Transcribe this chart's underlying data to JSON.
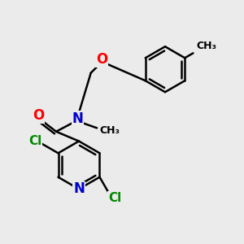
{
  "bg_color": "#ebebeb",
  "bond_color": "#000000",
  "N_color": "#0000cc",
  "O_color": "#ff0000",
  "Cl_color": "#008800",
  "line_width": 1.8,
  "figsize": [
    3.0,
    3.0
  ],
  "dpi": 100,
  "xlim": [
    0,
    10
  ],
  "ylim": [
    0,
    10
  ],
  "font_size_atom": 11,
  "font_size_methyl": 9
}
